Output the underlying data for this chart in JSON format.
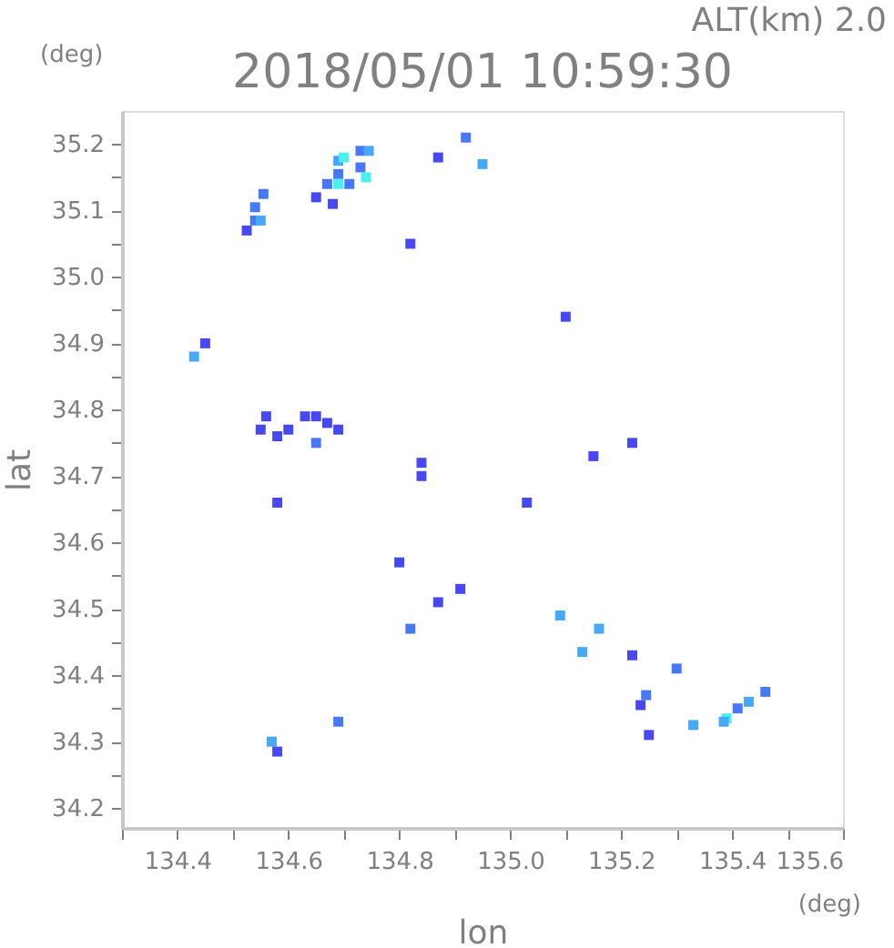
{
  "chart_data": {
    "type": "scatter",
    "title": "2018/05/01 10:59:30",
    "xlabel": "lon",
    "ylabel": "lat",
    "annotations": [
      "ALT(km) 2.0",
      "(deg)",
      "(deg)"
    ],
    "xlim": [
      134.3,
      135.6
    ],
    "ylim": [
      34.17,
      35.25
    ],
    "xticks": [
      {
        "value": 134.3,
        "label": null
      },
      134.4,
      {
        "value": 134.5,
        "label": null
      },
      134.6,
      {
        "value": 134.7,
        "label": null
      },
      134.8,
      {
        "value": 134.9,
        "label": null
      },
      {
        "value": 135.0,
        "label": "135.0"
      },
      {
        "value": 135.1,
        "label": null
      },
      135.2,
      {
        "value": 135.3,
        "label": null
      },
      135.4,
      {
        "value": 135.5,
        "label": null
      },
      135.6
    ],
    "yticks": [
      34.2,
      {
        "value": 34.25,
        "label": null
      },
      34.3,
      {
        "value": 34.35,
        "label": null
      },
      34.4,
      {
        "value": 34.45,
        "label": null
      },
      34.5,
      {
        "value": 34.55,
        "label": null
      },
      34.6,
      {
        "value": 34.65,
        "label": null
      },
      34.7,
      {
        "value": 34.75,
        "label": null
      },
      34.8,
      {
        "value": 34.85,
        "label": null
      },
      34.9,
      {
        "value": 34.95,
        "label": null
      },
      {
        "value": 35.0,
        "label": "35.0"
      },
      {
        "value": 35.05,
        "label": null
      },
      35.1,
      {
        "value": 35.15,
        "label": null
      },
      35.2
    ],
    "grid": false,
    "marker": "square",
    "series": [
      {
        "x": [
          134.525,
          134.54,
          134.54,
          134.555,
          134.55,
          134.65,
          134.67,
          134.69,
          134.69,
          134.7,
          134.73,
          134.745,
          134.73,
          134.74,
          134.69,
          134.71,
          134.68,
          134.87,
          134.92,
          134.95,
          134.82,
          134.45,
          134.43,
          134.58,
          134.6,
          134.63,
          134.65,
          134.67,
          134.69,
          134.65,
          134.56,
          134.55,
          134.58,
          134.8,
          134.84,
          134.84,
          135.1,
          135.22,
          135.15,
          135.03,
          134.91,
          134.87,
          134.82,
          135.09,
          135.16,
          135.13,
          135.22,
          135.3,
          135.235,
          135.245,
          135.33,
          135.25,
          135.39,
          135.41,
          135.43,
          135.46,
          135.385,
          134.57,
          134.58,
          134.69
        ],
        "values": [
          35.07,
          35.085,
          35.105,
          35.125,
          35.085,
          35.12,
          35.14,
          35.155,
          35.175,
          35.18,
          35.19,
          35.19,
          35.165,
          35.15,
          35.14,
          35.14,
          35.11,
          35.18,
          35.21,
          35.17,
          35.05,
          34.9,
          34.88,
          34.76,
          34.77,
          34.79,
          34.79,
          34.78,
          34.77,
          34.75,
          34.79,
          34.77,
          34.66,
          34.57,
          34.7,
          34.72,
          34.94,
          34.75,
          34.73,
          34.66,
          34.53,
          34.51,
          34.47,
          34.49,
          34.47,
          34.435,
          34.43,
          34.41,
          34.355,
          34.37,
          34.325,
          34.31,
          34.335,
          34.35,
          34.36,
          34.375,
          34.33,
          34.3,
          34.285,
          34.33
        ],
        "colors": [
          "#4848f0",
          "#4878f8",
          "#4878f8",
          "#4878f8",
          "#48a8f8",
          "#4848f0",
          "#4878f8",
          "#4878f8",
          "#48a8f8",
          "#48f0f0",
          "#4878f8",
          "#48a8f8",
          "#4878f8",
          "#48f0f0",
          "#48f0f0",
          "#4878f8",
          "#4848f0",
          "#4848f0",
          "#4878f8",
          "#48a8f8",
          "#4848f0",
          "#4848f0",
          "#48a8f8",
          "#4848f0",
          "#4848f0",
          "#4848f0",
          "#4848f0",
          "#4848f0",
          "#4848f0",
          "#4878f8",
          "#4848f0",
          "#4848f0",
          "#4848f0",
          "#4848f0",
          "#4848f0",
          "#4848f0",
          "#4848f0",
          "#4848f0",
          "#4848f0",
          "#4848f0",
          "#4848f0",
          "#4848f0",
          "#4878f8",
          "#48a8f8",
          "#48a8f8",
          "#48a8f8",
          "#4848f0",
          "#4878f8",
          "#4848f0",
          "#4878f8",
          "#48a8f8",
          "#4848f0",
          "#48f0f0",
          "#4878f8",
          "#48a8f8",
          "#4878f8",
          "#48a8f8",
          "#48a8f8",
          "#4848f0",
          "#4878f8"
        ]
      }
    ]
  }
}
